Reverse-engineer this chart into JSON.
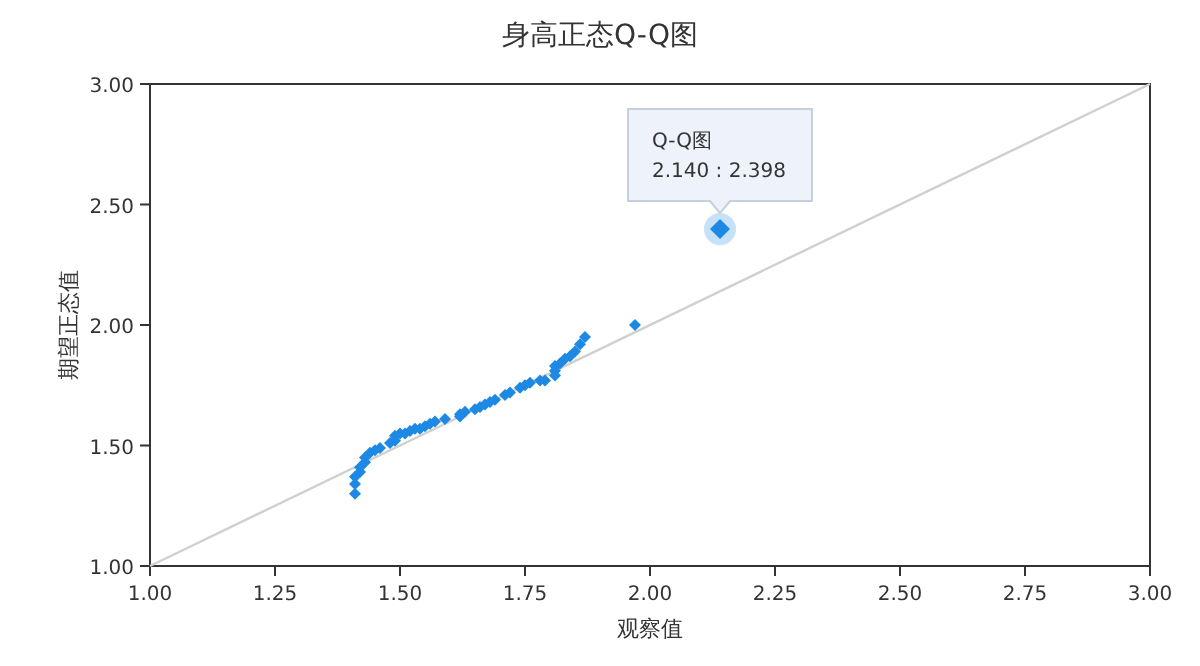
{
  "chart_data": {
    "type": "scatter",
    "title": "身高正态Q-Q图",
    "xlabel": "观察值",
    "ylabel": "期望正态值",
    "grid": false,
    "xlim": [
      1,
      3
    ],
    "ylim": [
      1,
      3
    ],
    "xticks": [
      {
        "value": 1,
        "label": "1.00"
      },
      {
        "value": 1.25,
        "label": "1.25"
      },
      {
        "value": 1.5,
        "label": "1.50"
      },
      {
        "value": 1.75,
        "label": "1.75"
      },
      {
        "value": 2,
        "label": "2.00"
      },
      {
        "value": 2.25,
        "label": "2.25"
      },
      {
        "value": 2.5,
        "label": "2.50"
      },
      {
        "value": 2.75,
        "label": "2.75"
      },
      {
        "value": 3,
        "label": "3.00"
      }
    ],
    "yticks": [
      {
        "value": 1,
        "label": "1.00"
      },
      {
        "value": 1.5,
        "label": "1.50"
      },
      {
        "value": 2,
        "label": "2.00"
      },
      {
        "value": 2.5,
        "label": "2.50"
      },
      {
        "value": 3,
        "label": "3.00"
      }
    ],
    "series": [
      {
        "type": "line",
        "marker": "none",
        "color": "#d0d0d0",
        "x": [
          1,
          3
        ],
        "values": [
          1,
          3
        ]
      },
      {
        "marker": "diamond",
        "color": "#1e88e5",
        "x": [
          1.41,
          1.41,
          1.41,
          1.42,
          1.42,
          1.43,
          1.43,
          1.44,
          1.45,
          1.46,
          1.48,
          1.49,
          1.49,
          1.5,
          1.51,
          1.52,
          1.53,
          1.54,
          1.55,
          1.56,
          1.57,
          1.59,
          1.62,
          1.62,
          1.63,
          1.65,
          1.66,
          1.67,
          1.68,
          1.69,
          1.71,
          1.72,
          1.74,
          1.75,
          1.76,
          1.78,
          1.79,
          1.81,
          1.81,
          1.81,
          1.82,
          1.83,
          1.84,
          1.85,
          1.86,
          1.87,
          1.97,
          2.14
        ],
        "values": [
          1.3,
          1.34,
          1.37,
          1.39,
          1.41,
          1.43,
          1.45,
          1.47,
          1.48,
          1.49,
          1.51,
          1.52,
          1.54,
          1.55,
          1.55,
          1.56,
          1.57,
          1.57,
          1.58,
          1.59,
          1.6,
          1.61,
          1.62,
          1.63,
          1.64,
          1.65,
          1.66,
          1.67,
          1.68,
          1.69,
          1.71,
          1.72,
          1.74,
          1.75,
          1.76,
          1.77,
          1.77,
          1.79,
          1.81,
          1.83,
          1.84,
          1.86,
          1.87,
          1.89,
          1.92,
          1.95,
          2.0,
          2.398
        ]
      }
    ],
    "annotations": [
      {
        "text": "Q-Q图\n2.140 : 2.398",
        "x": 2.14,
        "y": 2.398
      }
    ]
  }
}
